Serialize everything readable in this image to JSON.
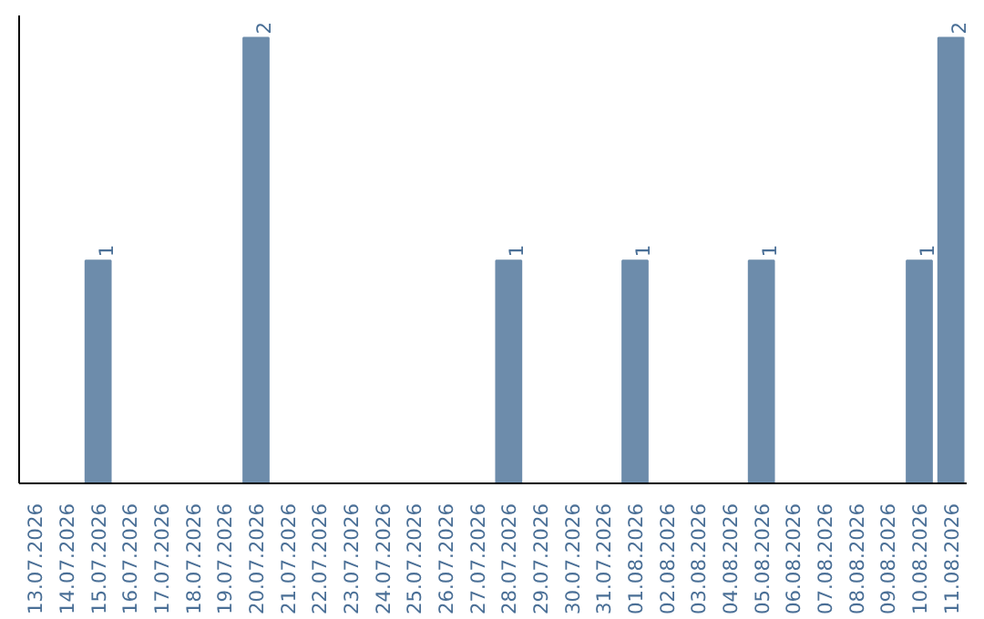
{
  "chart_data": {
    "type": "bar",
    "categories": [
      "13.07.2026",
      "14.07.2026",
      "15.07.2026",
      "16.07.2026",
      "17.07.2026",
      "18.07.2026",
      "19.07.2026",
      "20.07.2026",
      "21.07.2026",
      "22.07.2026",
      "23.07.2026",
      "24.07.2026",
      "25.07.2026",
      "26.07.2026",
      "27.07.2026",
      "28.07.2026",
      "29.07.2026",
      "30.07.2026",
      "31.07.2026",
      "01.08.2026",
      "02.08.2026",
      "03.08.2026",
      "04.08.2026",
      "05.08.2026",
      "06.08.2026",
      "07.08.2026",
      "08.08.2026",
      "09.08.2026",
      "10.08.2026",
      "11.08.2026"
    ],
    "values": [
      0,
      0,
      1,
      0,
      0,
      0,
      0,
      2,
      0,
      0,
      0,
      0,
      0,
      0,
      0,
      1,
      0,
      0,
      0,
      1,
      0,
      0,
      0,
      1,
      0,
      0,
      0,
      0,
      1,
      2
    ],
    "value_labels": [
      null,
      null,
      "1",
      null,
      null,
      null,
      null,
      "2",
      null,
      null,
      null,
      null,
      null,
      null,
      null,
      "1",
      null,
      null,
      null,
      "1",
      null,
      null,
      null,
      "1",
      null,
      null,
      null,
      null,
      "1",
      "2"
    ],
    "color": "#6d8cab",
    "ylim": [
      0,
      2.1
    ],
    "tick_labels": "x",
    "grid": false
  }
}
